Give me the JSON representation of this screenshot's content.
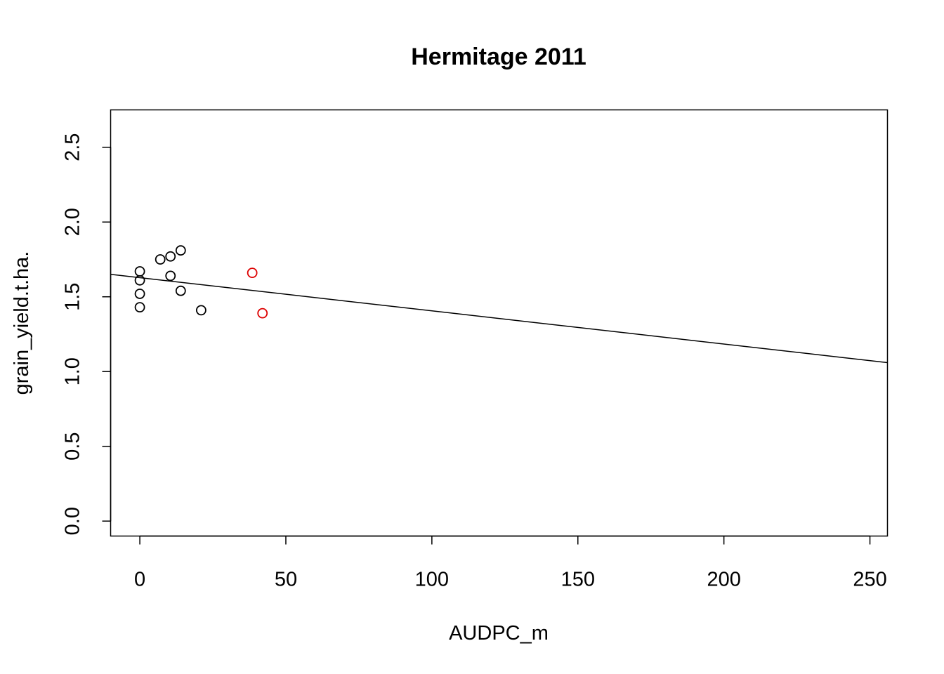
{
  "chart_data": {
    "type": "scatter",
    "title": "Hermitage 2011",
    "xlabel": "AUDPC_m",
    "ylabel": "grain_yield.t.ha.",
    "xlim": [
      -10,
      256
    ],
    "ylim": [
      -0.1,
      2.75
    ],
    "xticks": [
      0,
      50,
      100,
      150,
      200,
      250
    ],
    "xtick_labels": [
      "0",
      "50",
      "100",
      "150",
      "200",
      "250"
    ],
    "yticks": [
      0.0,
      0.5,
      1.0,
      1.5,
      2.0,
      2.5
    ],
    "ytick_labels": [
      "0.0",
      "0.5",
      "1.0",
      "1.5",
      "2.0",
      "2.5"
    ],
    "grid": false,
    "colors": {
      "default": "#000000",
      "highlight": "#dd0000"
    },
    "series": [
      {
        "color": "#000000",
        "points": [
          {
            "x": 0,
            "y": 1.67
          },
          {
            "x": 0,
            "y": 1.61
          },
          {
            "x": 0,
            "y": 1.52
          },
          {
            "x": 0,
            "y": 1.43
          },
          {
            "x": 7,
            "y": 1.75
          },
          {
            "x": 10.5,
            "y": 1.77
          },
          {
            "x": 10.5,
            "y": 1.64
          },
          {
            "x": 14,
            "y": 1.81
          },
          {
            "x": 14,
            "y": 1.54
          },
          {
            "x": 21,
            "y": 1.41
          }
        ]
      },
      {
        "color": "#dd0000",
        "points": [
          {
            "x": 38.5,
            "y": 1.66
          },
          {
            "x": 42,
            "y": 1.39
          }
        ]
      }
    ],
    "regression_line": {
      "intercept": 1.628,
      "slope": -0.00222
    }
  }
}
